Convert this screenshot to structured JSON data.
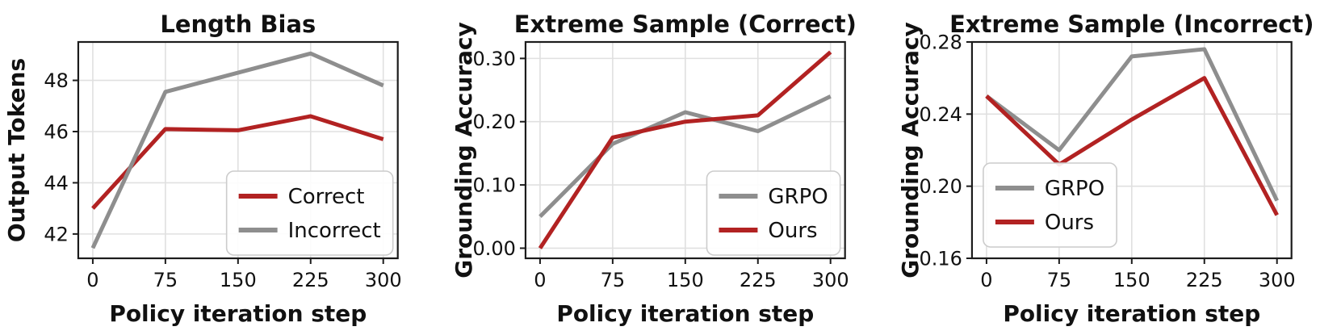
{
  "figure": {
    "name": "policy-iteration-analysis",
    "background": "#FFFFFF"
  },
  "colors": {
    "accent_red": "#B22222",
    "accent_gray": "#8E8E8E",
    "grid": "#E0E0E0",
    "spine": "#1C1C1C",
    "text": "#111111",
    "legend_border": "#CCCCCC",
    "legend_fill": "#FFFFFF"
  },
  "chart_data": [
    {
      "type": "line",
      "title": "Length Bias",
      "xlabel": "Policy iteration step",
      "ylabel": "Output Tokens",
      "x": [
        0,
        75,
        150,
        225,
        300
      ],
      "x_tick_labels": [
        "0",
        "75",
        "150",
        "225",
        "300"
      ],
      "xlim": [
        -15,
        315
      ],
      "ylim": [
        41.05,
        49.5
      ],
      "y_ticks": [
        {
          "value": 42,
          "label": "42"
        },
        {
          "value": 44,
          "label": "44"
        },
        {
          "value": 46,
          "label": "46"
        },
        {
          "value": 48,
          "label": "48"
        }
      ],
      "grid": true,
      "legend_position": "lower-right",
      "series": [
        {
          "name": "Correct",
          "color": "#B22222",
          "values": [
            43.0,
            46.1,
            46.05,
            46.6,
            45.7
          ]
        },
        {
          "name": "Incorrect",
          "color": "#8E8E8E",
          "values": [
            41.45,
            47.55,
            48.3,
            49.05,
            47.8
          ]
        }
      ]
    },
    {
      "type": "line",
      "title": "Extreme Sample (Correct)",
      "xlabel": "Policy iteration step",
      "ylabel": "Grounding Accuracy",
      "x": [
        0,
        75,
        150,
        225,
        300
      ],
      "x_tick_labels": [
        "0",
        "75",
        "150",
        "225",
        "300"
      ],
      "xlim": [
        -15,
        315
      ],
      "ylim": [
        -0.016,
        0.326
      ],
      "y_ticks": [
        {
          "value": 0.0,
          "label": "0.00"
        },
        {
          "value": 0.1,
          "label": "0.10"
        },
        {
          "value": 0.2,
          "label": "0.20"
        },
        {
          "value": 0.3,
          "label": "0.30"
        }
      ],
      "grid": true,
      "legend_position": "lower-right",
      "series": [
        {
          "name": "GRPO",
          "color": "#8E8E8E",
          "values": [
            0.05,
            0.165,
            0.215,
            0.185,
            0.24
          ]
        },
        {
          "name": "Ours",
          "color": "#B22222",
          "values": [
            0.0,
            0.175,
            0.2,
            0.21,
            0.31
          ]
        }
      ]
    },
    {
      "type": "line",
      "title": "Extreme Sample (Incorrect)",
      "xlabel": "Policy iteration step",
      "ylabel": "Grounding Accuracy",
      "x": [
        0,
        75,
        150,
        225,
        300
      ],
      "x_tick_labels": [
        "0",
        "75",
        "150",
        "225",
        "300"
      ],
      "xlim": [
        -15,
        315
      ],
      "ylim": [
        0.16,
        0.28
      ],
      "y_ticks": [
        {
          "value": 0.16,
          "label": "0.16"
        },
        {
          "value": 0.2,
          "label": "0.20"
        },
        {
          "value": 0.24,
          "label": "0.24"
        },
        {
          "value": 0.28,
          "label": "0.28"
        }
      ],
      "grid": true,
      "legend_position": "lower-left",
      "series": [
        {
          "name": "GRPO",
          "color": "#8E8E8E",
          "values": [
            0.25,
            0.22,
            0.272,
            0.276,
            0.192
          ]
        },
        {
          "name": "Ours",
          "color": "#B22222",
          "values": [
            0.25,
            0.212,
            0.237,
            0.26,
            0.184
          ]
        }
      ]
    }
  ]
}
